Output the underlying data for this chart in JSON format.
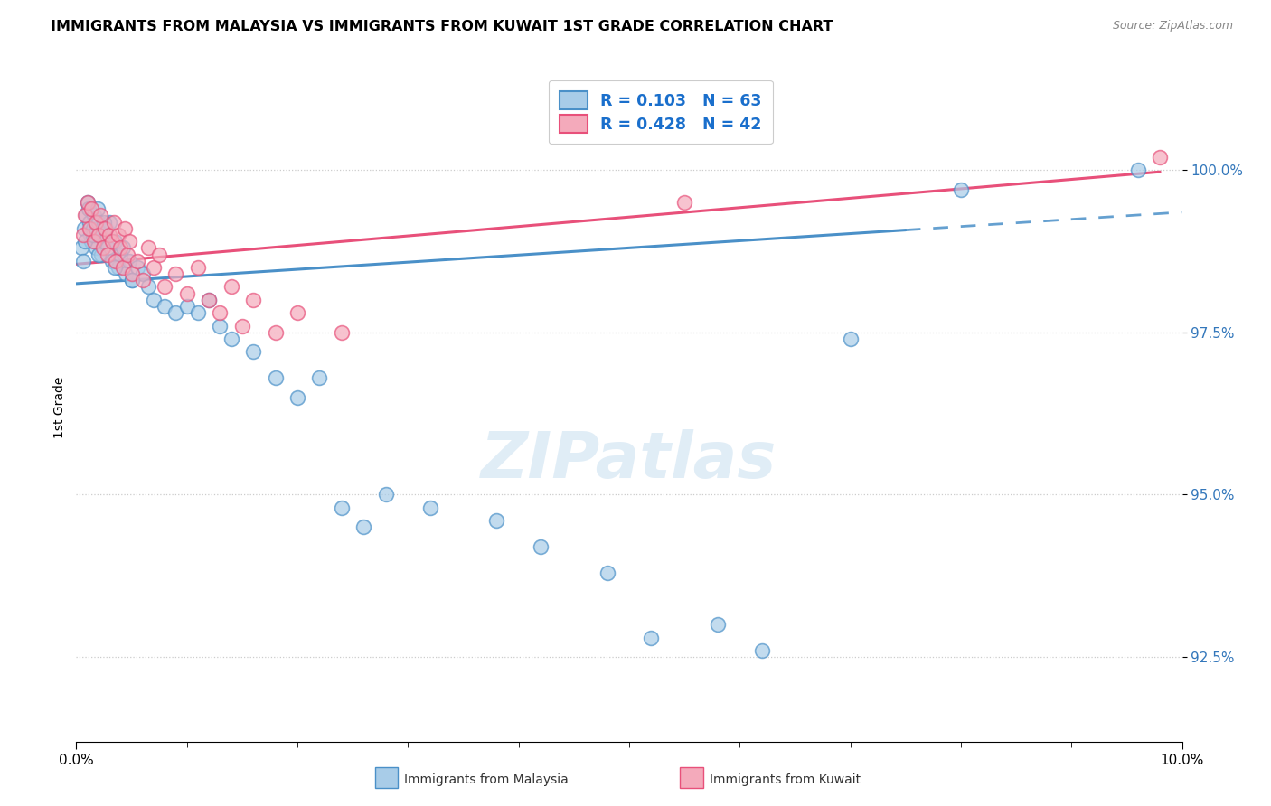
{
  "title": "IMMIGRANTS FROM MALAYSIA VS IMMIGRANTS FROM KUWAIT 1ST GRADE CORRELATION CHART",
  "source": "Source: ZipAtlas.com",
  "ylabel": "1st Grade",
  "legend_entry1": "R = 0.103   N = 63",
  "legend_entry2": "R = 0.428   N = 42",
  "legend_label1": "Immigrants from Malaysia",
  "legend_label2": "Immigrants from Kuwait",
  "color_malaysia": "#A8CCE8",
  "color_kuwait": "#F4AABB",
  "trendline_malaysia": "#4A90C8",
  "trendline_kuwait": "#E8507A",
  "xmin": 0.0,
  "xmax": 10.0,
  "ymin": 91.2,
  "ymax": 101.5,
  "yticks": [
    92.5,
    95.0,
    97.5,
    100.0
  ],
  "malaysia_x": [
    0.05,
    0.07,
    0.09,
    0.1,
    0.11,
    0.12,
    0.13,
    0.14,
    0.15,
    0.16,
    0.17,
    0.18,
    0.19,
    0.2,
    0.22,
    0.23,
    0.25,
    0.27,
    0.28,
    0.3,
    0.32,
    0.35,
    0.38,
    0.4,
    0.42,
    0.45,
    0.48,
    0.5,
    0.55,
    0.6,
    0.65,
    0.7,
    0.8,
    0.9,
    1.0,
    1.1,
    1.2,
    1.3,
    1.4,
    1.6,
    1.8,
    2.0,
    2.2,
    2.4,
    2.6,
    2.8,
    3.2,
    3.8,
    4.2,
    4.8,
    5.2,
    5.8,
    6.2,
    7.0,
    8.0,
    9.6,
    0.06,
    0.08,
    0.15,
    0.2,
    0.25,
    0.35,
    0.5
  ],
  "malaysia_y": [
    98.8,
    99.1,
    99.3,
    99.5,
    99.4,
    99.2,
    99.0,
    98.9,
    99.1,
    99.3,
    99.0,
    98.8,
    99.4,
    99.2,
    99.0,
    98.7,
    98.9,
    99.1,
    98.8,
    99.2,
    98.6,
    98.9,
    98.5,
    98.7,
    98.8,
    98.4,
    98.6,
    98.3,
    98.5,
    98.4,
    98.2,
    98.0,
    97.9,
    97.8,
    97.9,
    97.8,
    98.0,
    97.6,
    97.4,
    97.2,
    96.8,
    96.5,
    96.8,
    94.8,
    94.5,
    95.0,
    94.8,
    94.6,
    94.2,
    93.8,
    92.8,
    93.0,
    92.6,
    97.4,
    99.7,
    100.0,
    98.6,
    98.9,
    99.0,
    98.7,
    99.2,
    98.5,
    98.3
  ],
  "kuwait_x": [
    0.06,
    0.08,
    0.1,
    0.12,
    0.14,
    0.16,
    0.18,
    0.2,
    0.22,
    0.24,
    0.26,
    0.28,
    0.3,
    0.32,
    0.34,
    0.36,
    0.38,
    0.4,
    0.42,
    0.44,
    0.46,
    0.48,
    0.5,
    0.55,
    0.6,
    0.65,
    0.7,
    0.75,
    0.8,
    0.9,
    1.0,
    1.1,
    1.2,
    1.3,
    1.4,
    1.5,
    1.6,
    1.8,
    2.0,
    2.4,
    5.5,
    9.8
  ],
  "kuwait_y": [
    99.0,
    99.3,
    99.5,
    99.1,
    99.4,
    98.9,
    99.2,
    99.0,
    99.3,
    98.8,
    99.1,
    98.7,
    99.0,
    98.9,
    99.2,
    98.6,
    99.0,
    98.8,
    98.5,
    99.1,
    98.7,
    98.9,
    98.4,
    98.6,
    98.3,
    98.8,
    98.5,
    98.7,
    98.2,
    98.4,
    98.1,
    98.5,
    98.0,
    97.8,
    98.2,
    97.6,
    98.0,
    97.5,
    97.8,
    97.5,
    99.5,
    100.2
  ]
}
